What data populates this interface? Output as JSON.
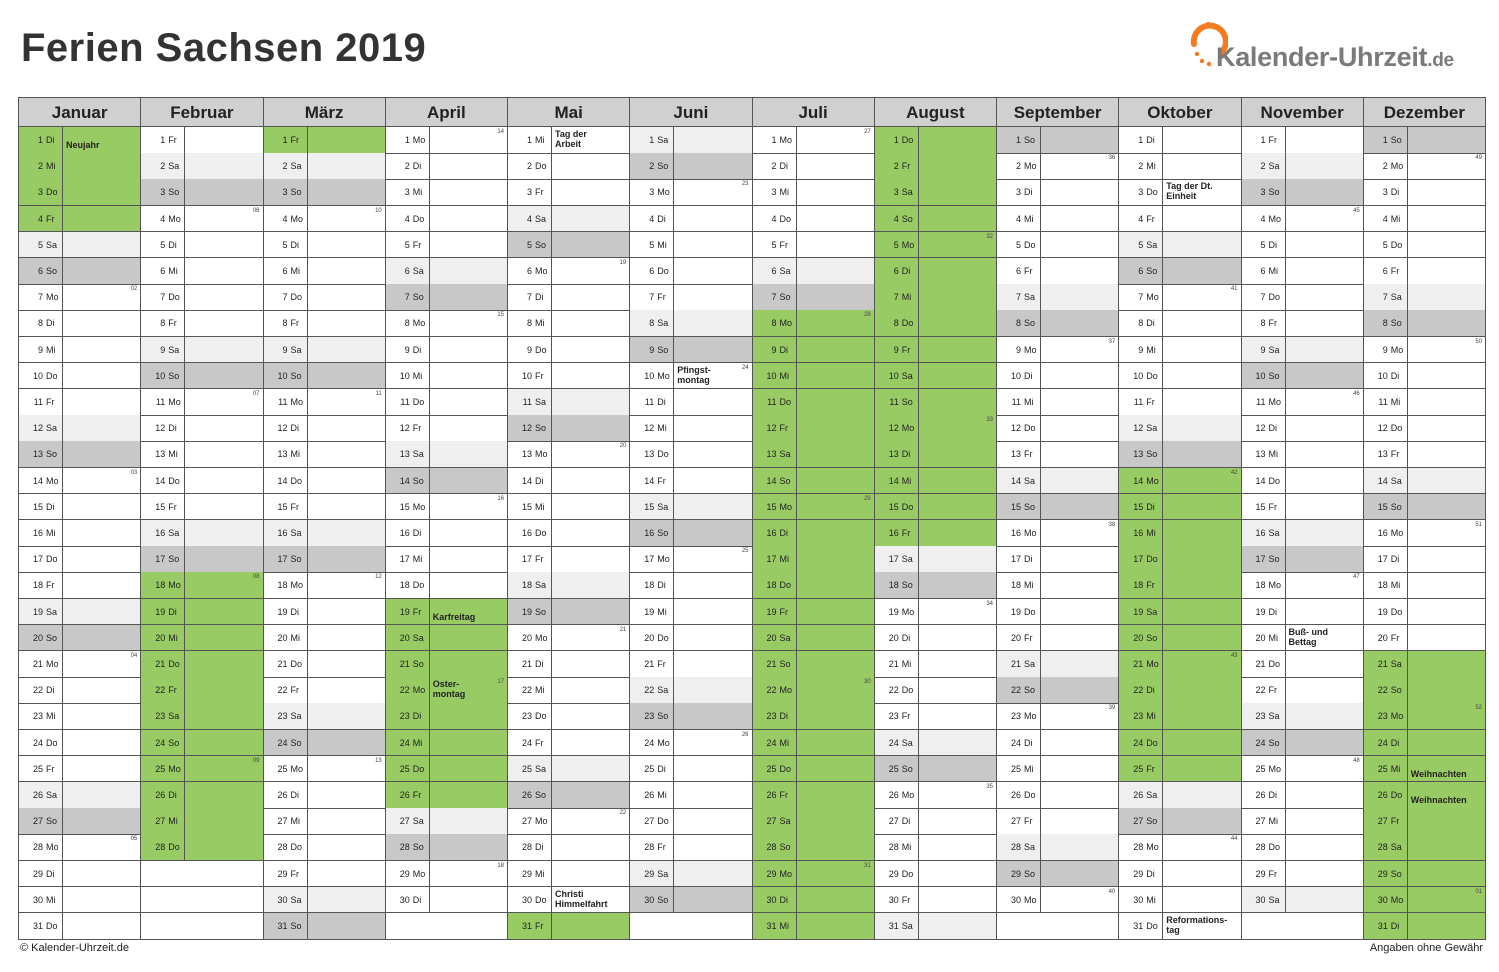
{
  "title": "Ferien Sachsen 2019",
  "logo": {
    "name": "Kalender-Uhrzeit",
    "tld": ".de"
  },
  "footer": {
    "copyright": "© Kalender-Uhrzeit.de",
    "disclaimer": "Angaben ohne Gewähr"
  },
  "colors": {
    "holiday": "#99cb64",
    "saturday": "#efefef",
    "sunday": "#c8c8c8",
    "header": "#d0d0d0",
    "logo_accent": "#f47b20"
  },
  "year": 2019,
  "months": [
    "Januar",
    "Februar",
    "März",
    "April",
    "Mai",
    "Juni",
    "Juli",
    "August",
    "September",
    "Oktober",
    "November",
    "Dezember"
  ],
  "weekday_abbr": [
    "So",
    "Mo",
    "Di",
    "Mi",
    "Do",
    "Fr",
    "Sa"
  ],
  "school_holidays": [
    {
      "from": "01-01",
      "to": "01-04"
    },
    {
      "from": "02-18",
      "to": "03-01"
    },
    {
      "from": "04-19",
      "to": "04-26"
    },
    {
      "from": "05-31",
      "to": "05-31"
    },
    {
      "from": "07-08",
      "to": "08-16"
    },
    {
      "from": "10-14",
      "to": "10-25"
    },
    {
      "from": "12-21",
      "to": "12-31"
    }
  ],
  "public_holidays": [
    {
      "date": "01-01",
      "label": "Neujahr",
      "pos": "low"
    },
    {
      "date": "04-19",
      "label": "Karfreitag",
      "pos": "low"
    },
    {
      "date": "04-22",
      "label": "Oster-\nmontag",
      "pos": "top"
    },
    {
      "date": "05-01",
      "label": "Tag der\nArbeit",
      "pos": "top"
    },
    {
      "date": "05-30",
      "label": "Christi\nHimmelfahrt",
      "pos": "top"
    },
    {
      "date": "06-10",
      "label": "Pfingst-\nmontag",
      "pos": "top"
    },
    {
      "date": "10-03",
      "label": "Tag der Dt.\nEinheit",
      "pos": "top"
    },
    {
      "date": "10-31",
      "label": "Reformations-\ntag",
      "pos": "top"
    },
    {
      "date": "11-20",
      "label": "Buß- und\nBettag",
      "pos": "top"
    },
    {
      "date": "12-25",
      "label": "Weihnachten",
      "pos": "low"
    },
    {
      "date": "12-26",
      "label": "Weihnachten",
      "pos": "low"
    }
  ]
}
